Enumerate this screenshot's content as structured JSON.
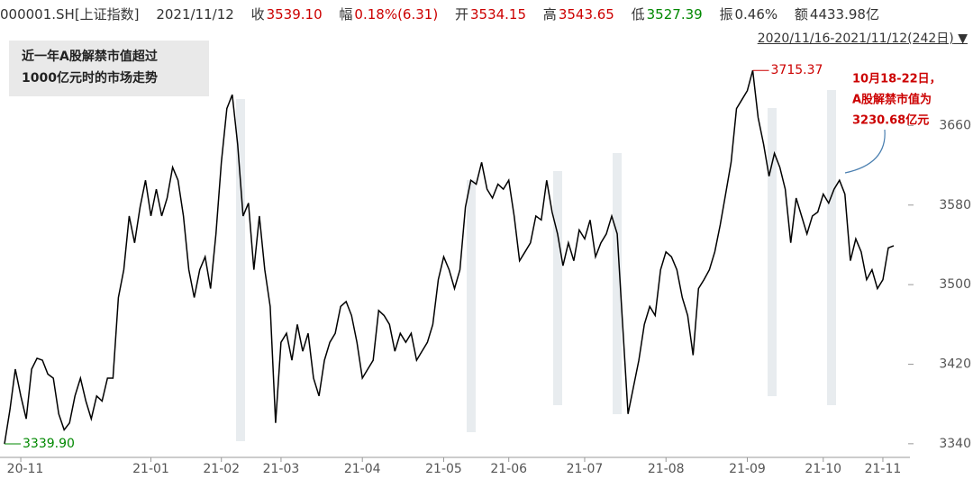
{
  "header": {
    "code": "000001.SH[上证指数]",
    "date": "2021/11/12",
    "close_label": "收",
    "close": "3539.10",
    "change_label": "幅",
    "change": "0.18%(6.31)",
    "open_label": "开",
    "open": "3534.15",
    "high_label": "高",
    "high": "3543.65",
    "low_label": "低",
    "low": "3527.39",
    "amp_label": "振",
    "amp": "0.46%",
    "amount_label": "额",
    "amount": "4433.98亿",
    "range": "2020/11/16-2021/11/12(242日)"
  },
  "chart_data": {
    "type": "line",
    "title_lines": [
      "近一年A股解禁市值超过",
      "1000亿元时的市场走势"
    ],
    "annotations": [
      "10月18-22日，",
      "A股解禁市值为",
      "3230.68亿元"
    ],
    "categories": [
      null,
      null,
      null,
      "20-11",
      null,
      null,
      null,
      null,
      null,
      null,
      null,
      null,
      null,
      null,
      null,
      null,
      null,
      null,
      null,
      null,
      null,
      null,
      null,
      null,
      null,
      null,
      null,
      "21-01",
      null,
      null,
      null,
      null,
      null,
      null,
      null,
      null,
      null,
      null,
      null,
      null,
      "21-02",
      null,
      null,
      null,
      null,
      null,
      null,
      null,
      null,
      null,
      null,
      "21-03",
      null,
      null,
      null,
      null,
      null,
      null,
      null,
      null,
      null,
      null,
      null,
      null,
      null,
      null,
      "21-04",
      null,
      null,
      null,
      null,
      null,
      null,
      null,
      null,
      null,
      null,
      null,
      null,
      null,
      null,
      "21-05",
      null,
      null,
      null,
      null,
      null,
      null,
      null,
      null,
      null,
      null,
      null,
      "21-06",
      null,
      null,
      null,
      null,
      null,
      null,
      null,
      null,
      null,
      null,
      null,
      null,
      null,
      "21-07",
      null,
      null,
      null,
      null,
      null,
      null,
      null,
      null,
      null,
      null,
      null,
      null,
      null,
      null,
      "21-08",
      null,
      null,
      null,
      null,
      null,
      null,
      null,
      null,
      null,
      null,
      null,
      null,
      null,
      null,
      "21-09",
      null,
      null,
      null,
      null,
      null,
      null,
      null,
      null,
      null,
      null,
      null,
      null,
      null,
      "21-10",
      null,
      null,
      null,
      null,
      null,
      null,
      null,
      null,
      null,
      null,
      "21-11",
      null,
      null
    ],
    "series": [
      {
        "color": "#000000",
        "values": [
          3339.9,
          3374,
          3415,
          3388,
          3365,
          3415,
          3426,
          3424,
          3410,
          3406,
          3370,
          3354,
          3361,
          3388,
          3406,
          3383,
          3365,
          3388,
          3383,
          3406,
          3406,
          3487,
          3515,
          3569,
          3542,
          3578,
          3605,
          3569,
          3596,
          3569,
          3587,
          3618,
          3605,
          3569,
          3515,
          3487,
          3515,
          3528,
          3496,
          3551,
          3623,
          3677,
          3691,
          3641,
          3569,
          3582,
          3515,
          3569,
          3515,
          3478,
          3361,
          3442,
          3451,
          3424,
          3460,
          3433,
          3451,
          3406,
          3388,
          3424,
          3442,
          3451,
          3478,
          3483,
          3469,
          3442,
          3406,
          3415,
          3424,
          3474,
          3469,
          3460,
          3433,
          3451,
          3442,
          3451,
          3424,
          3433,
          3442,
          3460,
          3505,
          3528,
          3515,
          3496,
          3515,
          3578,
          3605,
          3601,
          3623,
          3596,
          3587,
          3601,
          3596,
          3605,
          3569,
          3524,
          3533,
          3542,
          3569,
          3565,
          3605,
          3573,
          3551,
          3519,
          3542,
          3524,
          3555,
          3546,
          3565,
          3528,
          3542,
          3551,
          3569,
          3551,
          3460,
          3370,
          3397,
          3424,
          3460,
          3478,
          3469,
          3515,
          3533,
          3528,
          3515,
          3487,
          3469,
          3429,
          3496,
          3505,
          3515,
          3533,
          3560,
          3591,
          3623,
          3677,
          3686,
          3695,
          3715.37,
          3668,
          3641,
          3609,
          3632,
          3618,
          3596,
          3542,
          3587,
          3569,
          3551,
          3569,
          3573,
          3591,
          3582,
          3596,
          3605,
          3591,
          3524,
          3546,
          3533,
          3505,
          3515,
          3496,
          3505,
          3537,
          3539.1
        ],
        "value_labels": [
          "3339.90",
          null,
          null,
          null,
          null,
          null,
          null,
          null,
          null,
          null,
          null,
          null,
          null,
          null,
          null,
          null,
          null,
          null,
          null,
          null,
          null,
          null,
          null,
          null,
          null,
          null,
          null,
          null,
          null,
          null,
          null,
          null,
          null,
          null,
          null,
          null,
          null,
          null,
          null,
          null,
          null,
          null,
          null,
          null,
          null,
          null,
          null,
          null,
          null,
          null,
          null,
          null,
          null,
          null,
          null,
          null,
          null,
          null,
          null,
          null,
          null,
          null,
          null,
          null,
          null,
          null,
          null,
          null,
          null,
          null,
          null,
          null,
          null,
          null,
          null,
          null,
          null,
          null,
          null,
          null,
          null,
          null,
          null,
          null,
          null,
          null,
          null,
          null,
          null,
          null,
          null,
          null,
          null,
          null,
          null,
          null,
          null,
          null,
          null,
          null,
          null,
          null,
          null,
          null,
          null,
          null,
          null,
          null,
          null,
          null,
          null,
          null,
          null,
          null,
          null,
          null,
          null,
          null,
          null,
          null,
          null,
          null,
          null,
          null,
          null,
          null,
          null,
          null,
          null,
          null,
          null,
          null,
          null,
          null,
          null,
          null,
          null,
          null,
          "3715.37",
          null,
          null,
          null,
          null,
          null,
          null,
          null,
          null,
          null,
          null,
          null,
          null,
          null,
          null,
          null,
          null,
          null,
          null,
          null,
          null,
          null,
          null,
          null,
          null,
          null,
          null
        ]
      }
    ],
    "ylim": [
      3329,
      3750
    ],
    "yticks": [
      3340,
      3420,
      3500,
      3580,
      3660
    ]
  }
}
